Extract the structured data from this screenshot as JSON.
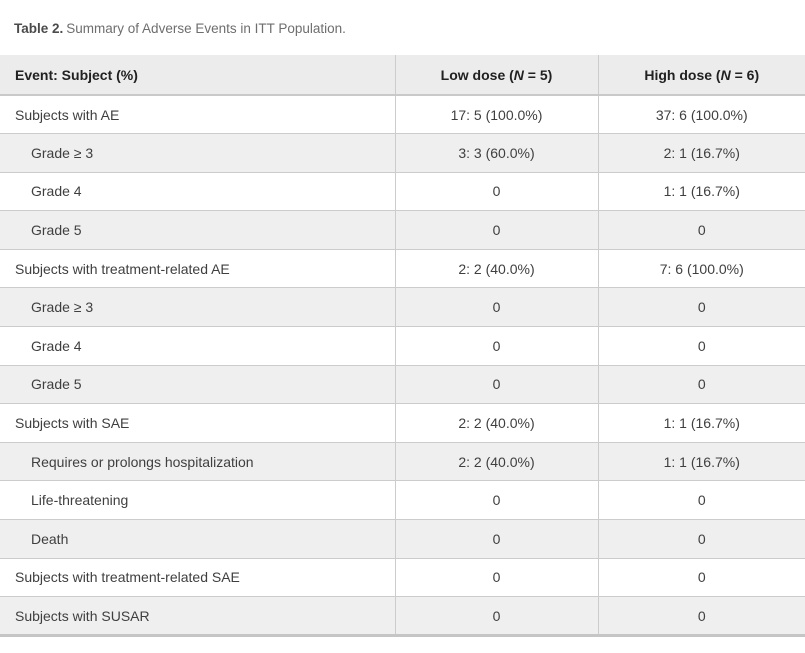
{
  "caption": {
    "label": "Table 2.",
    "text": "Summary of Adverse Events in ITT Population."
  },
  "header": {
    "event": "Event: Subject (%)",
    "low": {
      "pre": "Low dose (",
      "n": "N",
      "post": " = 5)"
    },
    "high": {
      "pre": "High dose (",
      "n": "N",
      "post": " = 6)"
    }
  },
  "rows": [
    {
      "label": "Subjects with AE",
      "indent": false,
      "low": "17: 5 (100.0%)",
      "high": "37: 6 (100.0%)"
    },
    {
      "label": "Grade ≥ 3",
      "indent": true,
      "low": "3: 3 (60.0%)",
      "high": "2: 1 (16.7%)"
    },
    {
      "label": "Grade 4",
      "indent": true,
      "low": "0",
      "high": "1: 1 (16.7%)"
    },
    {
      "label": "Grade 5",
      "indent": true,
      "low": "0",
      "high": "0"
    },
    {
      "label": "Subjects with treatment-related AE",
      "indent": false,
      "low": "2: 2 (40.0%)",
      "high": "7: 6 (100.0%)"
    },
    {
      "label": "Grade ≥ 3",
      "indent": true,
      "low": "0",
      "high": "0"
    },
    {
      "label": "Grade 4",
      "indent": true,
      "low": "0",
      "high": "0"
    },
    {
      "label": "Grade 5",
      "indent": true,
      "low": "0",
      "high": "0"
    },
    {
      "label": "Subjects with SAE",
      "indent": false,
      "low": "2: 2 (40.0%)",
      "high": "1: 1 (16.7%)"
    },
    {
      "label": "Requires or prolongs hospitalization",
      "indent": true,
      "low": "2: 2 (40.0%)",
      "high": "1: 1 (16.7%)"
    },
    {
      "label": "Life-threatening",
      "indent": true,
      "low": "0",
      "high": "0"
    },
    {
      "label": "Death",
      "indent": true,
      "low": "0",
      "high": "0"
    },
    {
      "label": "Subjects with treatment-related SAE",
      "indent": false,
      "low": "0",
      "high": "0"
    },
    {
      "label": "Subjects with SUSAR",
      "indent": false,
      "low": "0",
      "high": "0"
    }
  ],
  "colors": {
    "header_bg": "#ececec",
    "stripe_bg": "#efefef",
    "row_border": "#cccccc",
    "bottom_border": "#c5c5c5",
    "header_text": "#212121",
    "cell_text": "#3f3f3f",
    "caption_text": "#6e6e6e"
  }
}
